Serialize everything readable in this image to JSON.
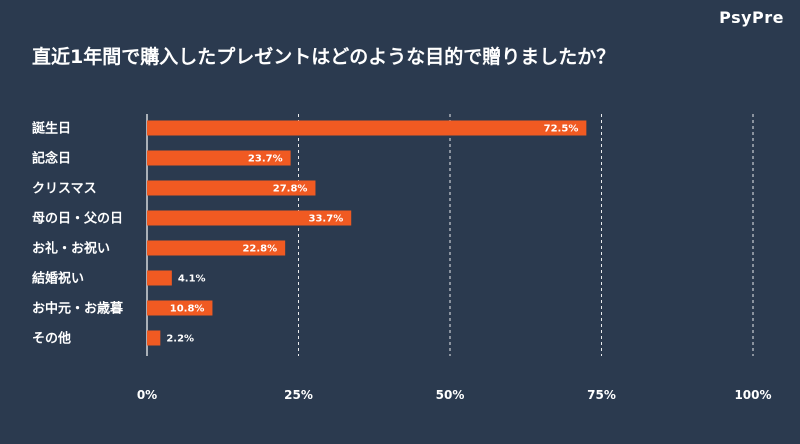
{
  "brand": "PsyPre",
  "title": "直近1年間で購入したプレゼントはどのような目的で贈りましたか？",
  "colors": {
    "background": "#2b3a4f",
    "bar": "#f05a22",
    "text": "#ffffff"
  },
  "chart_data": {
    "type": "bar",
    "orientation": "horizontal",
    "title": "直近1年間で購入したプレゼントはどのような目的で贈りましたか？",
    "categories": [
      "誕生日",
      "記念日",
      "クリスマス",
      "母の日・父の日",
      "お礼・お祝い",
      "結婚祝い",
      "お中元・お歳暮",
      "その他"
    ],
    "values": [
      72.5,
      23.7,
      27.8,
      33.7,
      22.8,
      4.1,
      10.8,
      2.2
    ],
    "value_labels": [
      "72.5%",
      "23.7%",
      "27.8%",
      "33.7%",
      "22.8%",
      "4.1%",
      "10.8%",
      "2.2%"
    ],
    "xlim": [
      0,
      100
    ],
    "xticks": [
      0,
      25,
      50,
      75,
      100
    ],
    "xtick_labels": [
      "0%",
      "25%",
      "50%",
      "75%",
      "100%"
    ],
    "grid": "vertical dashed"
  }
}
